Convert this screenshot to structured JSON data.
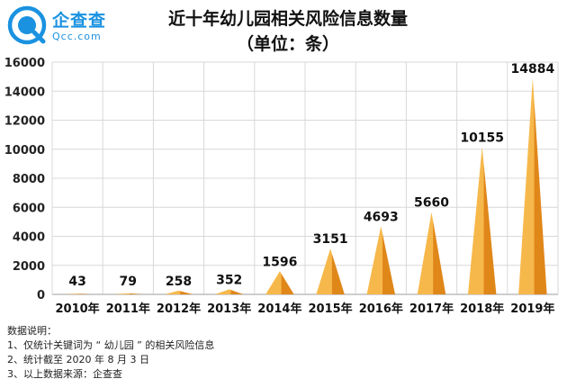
{
  "logo": {
    "name": "企查查",
    "domain": "Qcc.com"
  },
  "chart_data": {
    "type": "bar",
    "title": "近十年幼儿园相关风险信息数量",
    "subtitle": "（单位：条）",
    "categories": [
      "2010年",
      "2011年",
      "2012年",
      "2013年",
      "2014年",
      "2015年",
      "2016年",
      "2017年",
      "2018年",
      "2019年"
    ],
    "values": [
      43,
      79,
      258,
      352,
      1596,
      3151,
      4693,
      5660,
      10155,
      14884
    ],
    "value_labels": [
      "43",
      "79",
      "258",
      "352",
      "1596",
      "3151",
      "4693",
      "5660",
      "10155",
      "14884"
    ],
    "ylim": [
      0,
      16000
    ],
    "yticks": [
      "0",
      "2000",
      "4000",
      "6000",
      "8000",
      "10000",
      "12000",
      "14000",
      "16000"
    ],
    "grid": true,
    "bar_shape": "cone",
    "colors": {
      "light": "#f7b84b",
      "dark": "#e0871a",
      "grid": "#d8d8d8",
      "axis": "#bdbdbd"
    }
  },
  "notes": {
    "heading": "数据说明：",
    "lines": [
      "1、仅统计关键词为 “ 幼儿园 ” 的相关风险信息",
      "2、统计截至 2020 年 8 月 3 日",
      "3、以上数据来源：企查查"
    ]
  }
}
